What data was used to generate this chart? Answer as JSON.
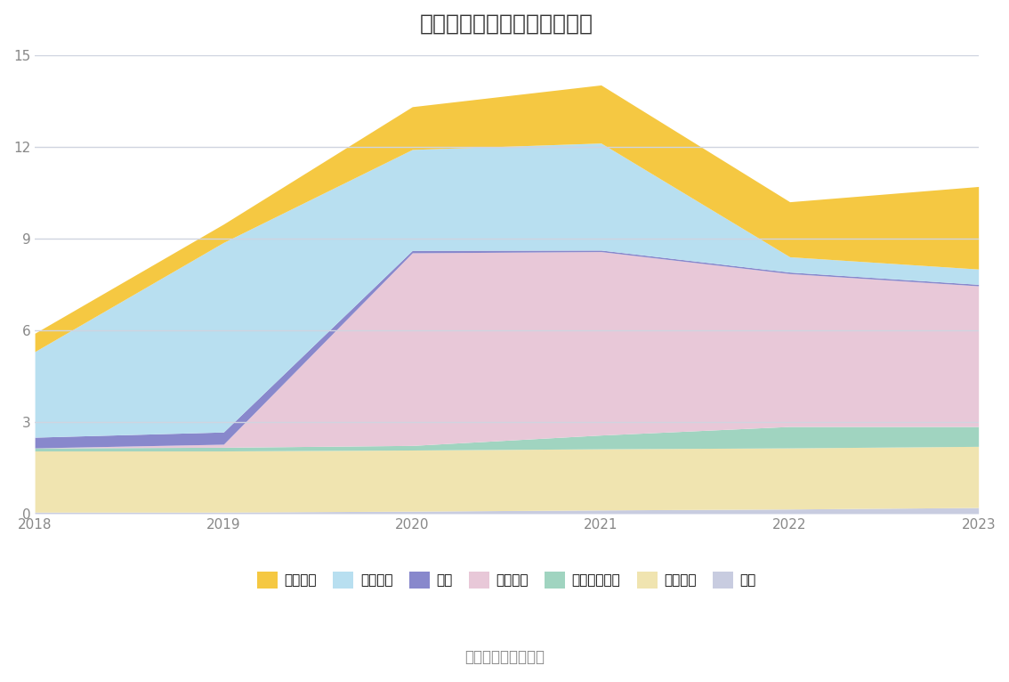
{
  "title": "历年主要资产堆积图（亿元）",
  "years": [
    2018,
    2019,
    2020,
    2021,
    2022,
    2023
  ],
  "series_bottom_to_top": [
    {
      "name": "其它",
      "color": "#c8cce0",
      "values": [
        0.05,
        0.05,
        0.08,
        0.12,
        0.15,
        0.2
      ]
    },
    {
      "name": "固定资产",
      "color": "#f0e4b0",
      "values": [
        2.0,
        2.0,
        2.0,
        2.0,
        2.0,
        2.0
      ]
    },
    {
      "name": "长期股权投资",
      "color": "#a0d4c0",
      "values": [
        0.1,
        0.12,
        0.15,
        0.45,
        0.7,
        0.65
      ]
    },
    {
      "name": "合同资产",
      "color": "#e8c8d8",
      "values": [
        0.0,
        0.1,
        6.3,
        6.0,
        5.0,
        4.6
      ]
    },
    {
      "name": "存货",
      "color": "#8888cc",
      "values": [
        0.35,
        0.4,
        0.08,
        0.05,
        0.05,
        0.05
      ]
    },
    {
      "name": "应收账款",
      "color": "#b8dff0",
      "values": [
        2.8,
        6.2,
        3.3,
        3.5,
        0.5,
        0.5
      ]
    },
    {
      "name": "货币资金",
      "color": "#f5c842",
      "values": [
        0.6,
        0.6,
        1.4,
        1.9,
        1.8,
        2.7
      ]
    }
  ],
  "legend_order": [
    "货币资金",
    "应收账款",
    "存货",
    "合同资产",
    "长期股权投资",
    "固定资产",
    "其它"
  ],
  "ylim": [
    0,
    15
  ],
  "yticks": [
    0,
    3,
    6,
    9,
    12,
    15
  ],
  "background_color": "#ffffff",
  "grid_color": "#d0d4e0",
  "source_text": "数据来源：恒生聚源",
  "title_fontsize": 18,
  "legend_fontsize": 11,
  "tick_fontsize": 11
}
